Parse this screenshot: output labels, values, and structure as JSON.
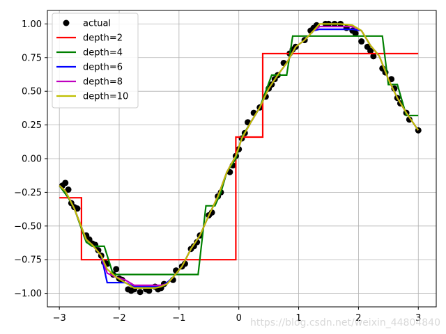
{
  "chart_data": {
    "type": "line",
    "title": "",
    "xlabel": "",
    "ylabel": "",
    "xlim": [
      -3.2,
      3.3
    ],
    "ylim": [
      -1.1,
      1.1
    ],
    "grid": true,
    "legend_placement": "top-left",
    "xticks": [
      -3,
      -2,
      -1,
      0,
      1,
      2,
      3
    ],
    "xtick_labels": [
      "−3",
      "−2",
      "−1",
      "0",
      "1",
      "2",
      "3"
    ],
    "yticks": [
      -1.0,
      -0.75,
      -0.5,
      -0.25,
      0.0,
      0.25,
      0.5,
      0.75,
      1.0
    ],
    "ytick_labels": [
      "−1.00",
      "−0.75",
      "−0.50",
      "−0.25",
      "0.00",
      "0.25",
      "0.50",
      "0.75",
      "1.00"
    ],
    "scatter": {
      "name": "actual",
      "color": "#000000",
      "x": [
        -2.95,
        -2.9,
        -2.85,
        -2.8,
        -2.75,
        -2.7,
        -2.55,
        -2.5,
        -2.45,
        -2.4,
        -2.35,
        -2.3,
        -2.25,
        -2.2,
        -2.1,
        -2.05,
        -2.0,
        -1.95,
        -1.85,
        -1.8,
        -1.75,
        -1.65,
        -1.55,
        -1.5,
        -1.4,
        -1.35,
        -1.3,
        -1.25,
        -1.1,
        -1.05,
        -0.95,
        -0.9,
        -0.8,
        -0.75,
        -0.7,
        -0.65,
        -0.5,
        -0.45,
        -0.35,
        -0.3,
        -0.15,
        -0.1,
        -0.05,
        0.0,
        0.05,
        0.1,
        0.15,
        0.25,
        0.35,
        0.45,
        0.5,
        0.55,
        0.6,
        0.65,
        0.75,
        0.85,
        0.9,
        0.95,
        1.1,
        1.2,
        1.25,
        1.3,
        1.45,
        1.5,
        1.6,
        1.7,
        1.8,
        1.9,
        1.95,
        2.05,
        2.15,
        2.2,
        2.25,
        2.4,
        2.45,
        2.55,
        2.6,
        2.65,
        2.7,
        2.8,
        2.85,
        3.0
      ],
      "y": [
        -0.2,
        -0.18,
        -0.23,
        -0.33,
        -0.36,
        -0.37,
        -0.57,
        -0.6,
        -0.63,
        -0.64,
        -0.68,
        -0.72,
        -0.77,
        -0.78,
        -0.86,
        -0.82,
        -0.89,
        -0.9,
        -0.97,
        -0.98,
        -0.97,
        -0.99,
        -0.97,
        -0.98,
        -0.95,
        -0.97,
        -0.96,
        -0.93,
        -0.9,
        -0.83,
        -0.8,
        -0.78,
        -0.67,
        -0.65,
        -0.62,
        -0.57,
        -0.42,
        -0.4,
        -0.28,
        -0.25,
        -0.1,
        -0.05,
        0.02,
        0.07,
        0.15,
        0.19,
        0.27,
        0.34,
        0.38,
        0.46,
        0.52,
        0.55,
        0.59,
        0.62,
        0.71,
        0.78,
        0.81,
        0.83,
        0.88,
        0.95,
        0.97,
        0.99,
        1.0,
        1.0,
        1.0,
        1.0,
        0.97,
        0.95,
        0.93,
        0.87,
        0.83,
        0.8,
        0.76,
        0.67,
        0.64,
        0.59,
        0.52,
        0.45,
        0.41,
        0.34,
        0.29,
        0.21
      ]
    },
    "series": [
      {
        "name": "depth=2",
        "color": "#ff0000",
        "x": [
          -3.0,
          -2.63,
          -2.63,
          -2.5,
          -2.5,
          -0.05,
          -0.05,
          0.07,
          0.07,
          0.4,
          0.4,
          0.53,
          0.53,
          3.0
        ],
        "y": [
          -0.29,
          -0.29,
          -0.75,
          -0.75,
          -0.75,
          -0.75,
          0.16,
          0.16,
          0.16,
          0.16,
          0.78,
          0.78,
          0.78,
          0.78
        ]
      },
      {
        "name": "depth=4",
        "color": "#008000",
        "x": [
          -3.0,
          -2.85,
          -2.75,
          -2.55,
          -2.45,
          -2.25,
          -2.1,
          -0.68,
          -0.55,
          -0.4,
          -0.3,
          -0.2,
          -0.05,
          0.05,
          0.35,
          0.55,
          0.8,
          0.9,
          1.55,
          2.0,
          2.4,
          2.5,
          2.65,
          2.8,
          3.0
        ],
        "y": [
          -0.2,
          -0.29,
          -0.37,
          -0.62,
          -0.65,
          -0.65,
          -0.86,
          -0.86,
          -0.35,
          -0.35,
          -0.25,
          -0.1,
          0.0,
          0.16,
          0.38,
          0.62,
          0.62,
          0.91,
          0.91,
          0.91,
          0.91,
          0.55,
          0.55,
          0.32,
          0.32
        ]
      },
      {
        "name": "depth=6",
        "color": "#0000ff",
        "x": [
          -3.0,
          -2.9,
          -2.75,
          -2.55,
          -2.45,
          -2.3,
          -2.2,
          -2.05,
          -1.9,
          -1.75,
          -1.55,
          -1.4,
          -1.3,
          -1.2,
          -1.1,
          -0.95,
          -0.8,
          -0.65,
          -0.5,
          -0.35,
          -0.2,
          -0.05,
          0.05,
          0.2,
          0.35,
          0.5,
          0.65,
          0.8,
          0.95,
          1.1,
          1.25,
          1.35,
          1.5,
          1.7,
          1.9,
          2.05,
          2.2,
          2.35,
          2.5,
          2.65,
          2.8,
          3.0
        ],
        "y": [
          -0.2,
          -0.24,
          -0.37,
          -0.6,
          -0.64,
          -0.72,
          -0.92,
          -0.92,
          -0.92,
          -0.95,
          -0.95,
          -0.95,
          -0.95,
          -0.92,
          -0.88,
          -0.8,
          -0.67,
          -0.57,
          -0.42,
          -0.28,
          -0.1,
          0.02,
          0.15,
          0.27,
          0.38,
          0.52,
          0.62,
          0.71,
          0.83,
          0.88,
          0.95,
          0.96,
          0.96,
          0.96,
          0.96,
          0.95,
          0.84,
          0.76,
          0.59,
          0.45,
          0.34,
          0.21
        ]
      },
      {
        "name": "depth=8",
        "color": "#bf00bf",
        "x": [
          -3.0,
          -2.9,
          -2.75,
          -2.55,
          -2.45,
          -2.3,
          -2.2,
          -2.05,
          -1.9,
          -1.75,
          -1.55,
          -1.4,
          -1.3,
          -1.2,
          -1.1,
          -0.95,
          -0.8,
          -0.65,
          -0.5,
          -0.35,
          -0.2,
          -0.05,
          0.05,
          0.2,
          0.35,
          0.5,
          0.65,
          0.8,
          0.95,
          1.1,
          1.25,
          1.35,
          1.5,
          1.7,
          1.9,
          2.05,
          2.2,
          2.35,
          2.5,
          2.65,
          2.8,
          3.0
        ],
        "y": [
          -0.2,
          -0.24,
          -0.37,
          -0.6,
          -0.64,
          -0.72,
          -0.85,
          -0.88,
          -0.9,
          -0.94,
          -0.94,
          -0.94,
          -0.94,
          -0.93,
          -0.88,
          -0.8,
          -0.67,
          -0.57,
          -0.42,
          -0.28,
          -0.1,
          0.02,
          0.15,
          0.27,
          0.38,
          0.52,
          0.62,
          0.71,
          0.83,
          0.88,
          0.95,
          0.98,
          0.98,
          0.98,
          0.98,
          0.95,
          0.84,
          0.76,
          0.59,
          0.45,
          0.34,
          0.21
        ]
      },
      {
        "name": "depth=10",
        "color": "#bfbf00",
        "x": [
          -3.0,
          -2.9,
          -2.75,
          -2.55,
          -2.45,
          -2.3,
          -2.2,
          -2.05,
          -1.9,
          -1.75,
          -1.55,
          -1.4,
          -1.3,
          -1.2,
          -1.1,
          -0.95,
          -0.8,
          -0.65,
          -0.5,
          -0.35,
          -0.2,
          -0.05,
          0.05,
          0.2,
          0.35,
          0.5,
          0.65,
          0.8,
          0.95,
          1.1,
          1.25,
          1.35,
          1.5,
          1.7,
          1.9,
          2.05,
          2.2,
          2.35,
          2.5,
          2.65,
          2.8,
          3.0
        ],
        "y": [
          -0.2,
          -0.24,
          -0.37,
          -0.6,
          -0.64,
          -0.72,
          -0.82,
          -0.88,
          -0.92,
          -0.96,
          -0.96,
          -0.96,
          -0.95,
          -0.93,
          -0.88,
          -0.8,
          -0.67,
          -0.57,
          -0.42,
          -0.28,
          -0.1,
          0.02,
          0.15,
          0.27,
          0.38,
          0.52,
          0.62,
          0.71,
          0.83,
          0.88,
          0.95,
          1.0,
          1.0,
          1.0,
          0.99,
          0.95,
          0.84,
          0.76,
          0.59,
          0.45,
          0.34,
          0.21
        ]
      }
    ],
    "legend": [
      "actual",
      "depth=2",
      "depth=4",
      "depth=6",
      "depth=8",
      "depth=10"
    ]
  },
  "watermark": "https://blog.csdn.net/weixin_44804840"
}
